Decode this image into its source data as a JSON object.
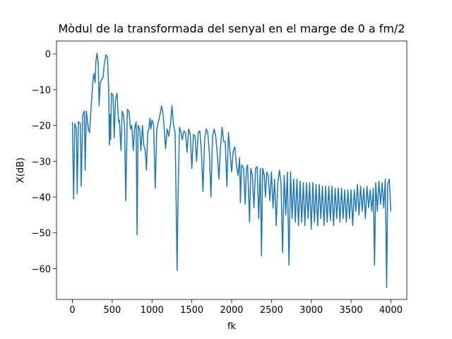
{
  "chart_data": {
    "type": "line",
    "title": "Mòdul de la transformada del senyal en el marge de 0 a fm/2",
    "x_label": "fk",
    "y_label": "X(dB)",
    "color": "#1f77b4",
    "xlim": [
      -200,
      4200
    ],
    "ylim": [
      -68.6,
      3.6
    ],
    "xticks": [
      0,
      500,
      1000,
      1500,
      2000,
      2500,
      3000,
      3500,
      4000
    ],
    "yticks": [
      {
        "value": -60,
        "label": "−60"
      },
      {
        "value": -50,
        "label": "−50"
      },
      {
        "value": -40,
        "label": "−40"
      },
      {
        "value": -30,
        "label": "−30"
      },
      {
        "value": -20,
        "label": "−20"
      },
      {
        "value": -10,
        "label": "−10"
      },
      0
    ],
    "grid": false,
    "x": [
      0,
      15,
      30,
      50,
      60,
      75,
      100,
      110,
      130,
      150,
      160,
      175,
      200,
      215,
      240,
      260,
      270,
      285,
      295,
      310,
      325,
      335,
      350,
      370,
      385,
      400,
      420,
      440,
      455,
      465,
      475,
      480,
      490,
      510,
      525,
      540,
      560,
      580,
      590,
      610,
      625,
      640,
      655,
      670,
      690,
      710,
      730,
      745,
      765,
      780,
      800,
      812,
      825,
      845,
      860,
      880,
      895,
      915,
      930,
      945,
      960,
      975,
      985,
      1000,
      1020,
      1040,
      1060,
      1080,
      1100,
      1120,
      1140,
      1150,
      1170,
      1190,
      1210,
      1230,
      1250,
      1270,
      1290,
      1305,
      1315,
      1325,
      1345,
      1365,
      1380,
      1400,
      1420,
      1440,
      1460,
      1480,
      1500,
      1520,
      1540,
      1560,
      1580,
      1600,
      1620,
      1640,
      1660,
      1680,
      1700,
      1720,
      1740,
      1760,
      1780,
      1800,
      1820,
      1840,
      1860,
      1880,
      1900,
      1920,
      1940,
      1960,
      1975,
      2000,
      2020,
      2040,
      2060,
      2080,
      2100,
      2110,
      2125,
      2150,
      2170,
      2185,
      2200,
      2225,
      2240,
      2260,
      2280,
      2300,
      2320,
      2340,
      2360,
      2375,
      2390,
      2410,
      2425,
      2440,
      2460,
      2480,
      2500,
      2520,
      2540,
      2560,
      2580,
      2600,
      2620,
      2640,
      2660,
      2680,
      2700,
      2720,
      2740,
      2760,
      2780,
      2800,
      2820,
      2840,
      2860,
      2880,
      2900,
      2920,
      2940,
      2960,
      2980,
      3000,
      3020,
      3040,
      3060,
      3080,
      3100,
      3120,
      3140,
      3160,
      3180,
      3200,
      3220,
      3240,
      3260,
      3280,
      3300,
      3320,
      3340,
      3360,
      3380,
      3400,
      3420,
      3440,
      3460,
      3480,
      3500,
      3520,
      3540,
      3560,
      3580,
      3600,
      3620,
      3640,
      3660,
      3680,
      3700,
      3720,
      3740,
      3760,
      3780,
      3795,
      3810,
      3830,
      3850,
      3870,
      3890,
      3910,
      3930,
      3947,
      3960,
      3980,
      4000
    ],
    "values": [
      -19,
      -40.5,
      -19.5,
      -21,
      -39,
      -19,
      -19.5,
      -37,
      -17,
      -16,
      -32.5,
      -16,
      -21,
      -22,
      -13,
      -7,
      -5.5,
      -8,
      -2,
      0.2,
      -3,
      -14.5,
      -8,
      -7,
      -6.5,
      -3,
      -0.3,
      -1,
      -10,
      -25.5,
      -17,
      -24,
      -11,
      -11.5,
      -23.5,
      -13,
      -11,
      -19,
      -18.5,
      -27,
      -16,
      -17,
      -20,
      -41,
      -15.5,
      -16,
      -21,
      -20,
      -27,
      -21,
      -19,
      -50.5,
      -20,
      -21,
      -27,
      -20,
      -25.5,
      -27,
      -32.5,
      -22,
      -21,
      -18,
      -21,
      -18.5,
      -20,
      -37.5,
      -21,
      -19,
      -17,
      -14.5,
      -17,
      -20,
      -26.5,
      -21,
      -23,
      -20,
      -14.5,
      -20,
      -22,
      -44.5,
      -60.5,
      -42,
      -20.5,
      -22,
      -24,
      -21.5,
      -22,
      -27.5,
      -21,
      -22.5,
      -32,
      -22.5,
      -23,
      -30,
      -22,
      -21.5,
      -27,
      -38.5,
      -24,
      -21,
      -22,
      -27.5,
      -40,
      -23,
      -21,
      -23,
      -28,
      -35,
      -26,
      -20.5,
      -24.5,
      -24.5,
      -37,
      -22,
      -26,
      -33,
      -27,
      -26,
      -31,
      -34,
      -29,
      -41.5,
      -31,
      -32,
      -42,
      -32,
      -31,
      -47,
      -32,
      -34,
      -43,
      -32,
      -31.5,
      -46,
      -32,
      -56.5,
      -32,
      -34,
      -40,
      -33,
      -34,
      -41,
      -33,
      -43,
      -35,
      -48,
      -36,
      -32.5,
      -36,
      -55.5,
      -34,
      -45,
      -33,
      -59,
      -33,
      -46,
      -35,
      -47,
      -35,
      -48,
      -35.5,
      -47,
      -36,
      -48,
      -36,
      -46,
      -36,
      -49,
      -36,
      -47,
      -36.5,
      -48,
      -36.5,
      -46,
      -37,
      -48,
      -37,
      -47,
      -37,
      -46.5,
      -37,
      -48,
      -37.5,
      -46,
      -37.5,
      -47,
      -37.5,
      -46,
      -38,
      -47,
      -38,
      -46,
      -38,
      -48,
      -38,
      -44,
      -36.5,
      -45,
      -37,
      -44,
      -37.5,
      -46,
      -37,
      -43,
      -38,
      -44,
      -37.5,
      -59,
      -36,
      -44,
      -35.5,
      -42,
      -36,
      -43,
      -35,
      -65.3,
      -36.5,
      -35,
      -44
    ]
  }
}
